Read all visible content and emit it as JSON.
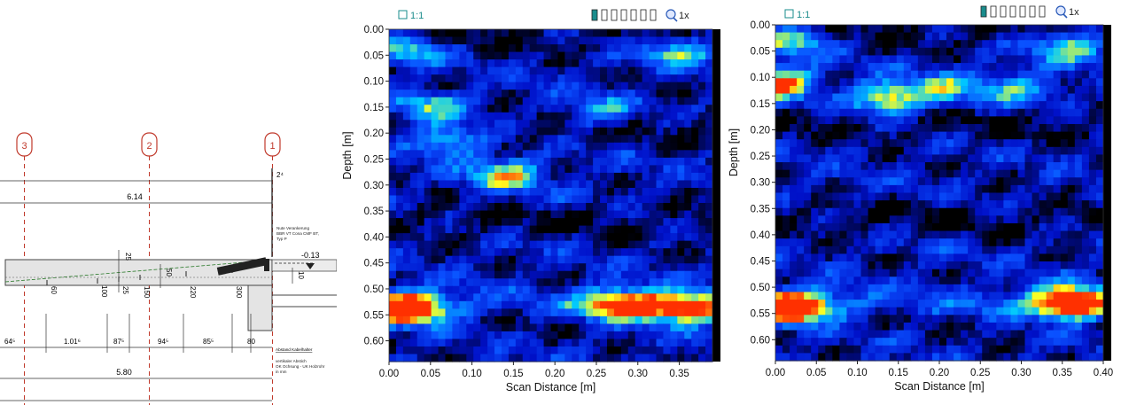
{
  "drawing": {
    "axes": [
      "3",
      "2",
      "1"
    ],
    "dims_top": [
      "6.14",
      "2⁴"
    ],
    "note_main": [
      "Nute Verankerung",
      "BBR VT Cona CMF BT,",
      "Typ P"
    ],
    "level_label": "-0.13",
    "dims_vertical": [
      "25",
      "50",
      "10"
    ],
    "rebar_marks": [
      "60",
      "100",
      "25",
      "150",
      "220",
      "300"
    ],
    "dims_row": [
      "64⁵",
      "1.01⁶",
      "87⁵",
      "94⁵",
      "85⁵",
      "80"
    ],
    "note_distance": "Abstand Kabelhalter",
    "note_bottom": [
      "vertikaler Abstich",
      "OK Ochsung - UK Holzrohr",
      "in mm"
    ],
    "dims_bottom": [
      "5.80"
    ]
  },
  "toolbar": {
    "ratio_label": "1:1",
    "zoom_label": "1x",
    "icons": [
      "aspect-ratio-icon",
      "color-palette-icon",
      "zoom-icon"
    ]
  },
  "chart_data": [
    {
      "type": "heatmap",
      "title": "",
      "xlabel": "Scan Distance [m]",
      "ylabel": "Depth [m]",
      "xlim": [
        0.0,
        0.39
      ],
      "ylim": [
        0.64,
        0.0
      ],
      "xticks": [
        "0.00",
        "0.05",
        "0.10",
        "0.15",
        "0.20",
        "0.25",
        "0.30",
        "0.35"
      ],
      "yticks": [
        "0.00",
        "0.05",
        "0.10",
        "0.15",
        "0.20",
        "0.25",
        "0.30",
        "0.35",
        "0.40",
        "0.45",
        "0.50",
        "0.55",
        "0.60"
      ],
      "colormap": [
        "#000000",
        "#0010c8",
        "#0a50ff",
        "#00c8ff",
        "#ffff20",
        "#ff3000"
      ],
      "hotspots": [
        {
          "x": 0.02,
          "y": 0.54,
          "intensity": 1.0
        },
        {
          "x": 0.28,
          "y": 0.53,
          "intensity": 0.82
        },
        {
          "x": 0.36,
          "y": 0.54,
          "intensity": 0.74
        },
        {
          "x": 0.14,
          "y": 0.28,
          "intensity": 0.6
        },
        {
          "x": 0.07,
          "y": 0.21,
          "intensity": 0.55
        },
        {
          "x": 0.05,
          "y": 0.15,
          "intensity": 0.45
        },
        {
          "x": 0.02,
          "y": 0.04,
          "intensity": 0.45
        },
        {
          "x": 0.35,
          "y": 0.04,
          "intensity": 0.5
        },
        {
          "x": 0.25,
          "y": 0.16,
          "intensity": 0.38
        }
      ]
    },
    {
      "type": "heatmap",
      "title": "",
      "xlabel": "Scan Distance [m]",
      "ylabel": "Depth [m]",
      "xlim": [
        0.0,
        0.4
      ],
      "ylim": [
        0.64,
        0.0
      ],
      "xticks": [
        "0.00",
        "0.05",
        "0.10",
        "0.15",
        "0.20",
        "0.25",
        "0.30",
        "0.35",
        "0.40"
      ],
      "yticks": [
        "0.00",
        "0.05",
        "0.10",
        "0.15",
        "0.20",
        "0.25",
        "0.30",
        "0.35",
        "0.40",
        "0.45",
        "0.50",
        "0.55",
        "0.60"
      ],
      "colormap": [
        "#000000",
        "#0010c8",
        "#0a50ff",
        "#00c8ff",
        "#ffff20",
        "#ff3000"
      ],
      "hotspots": [
        {
          "x": 0.02,
          "y": 0.54,
          "intensity": 1.0
        },
        {
          "x": 0.36,
          "y": 0.53,
          "intensity": 0.95
        },
        {
          "x": 0.14,
          "y": 0.14,
          "intensity": 0.7
        },
        {
          "x": 0.0,
          "y": 0.11,
          "intensity": 0.85
        },
        {
          "x": 0.02,
          "y": 0.03,
          "intensity": 0.55
        },
        {
          "x": 0.36,
          "y": 0.04,
          "intensity": 0.55
        },
        {
          "x": 0.21,
          "y": 0.12,
          "intensity": 0.4
        },
        {
          "x": 0.3,
          "y": 0.12,
          "intensity": 0.38
        }
      ]
    }
  ]
}
